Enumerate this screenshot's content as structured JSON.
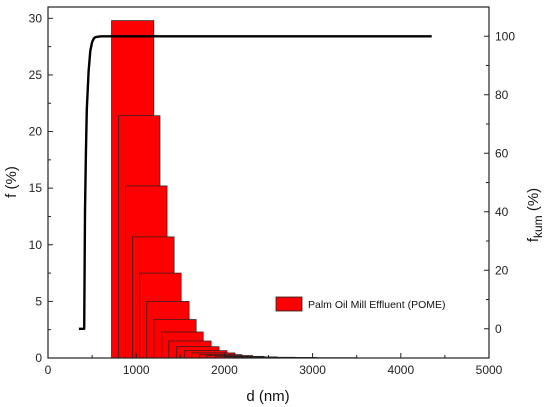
{
  "chart_data": {
    "type": "bar",
    "legend_position": "center-right",
    "grid": false,
    "colors": {
      "bars": "#ff0000",
      "bar_edge": "#222222",
      "cumulative_line": "#000000"
    },
    "xlabel": "d (nm)",
    "ylabel": "f (%)",
    "y2label": "f",
    "y2label_sub": "kum",
    "y2label_suffix": " (%)",
    "xlim": [
      0,
      5000
    ],
    "ylim": [
      0,
      31
    ],
    "y2lim": [
      -10,
      110
    ],
    "x_ticks": [
      "0",
      "1000",
      "2000",
      "3000",
      "4000",
      "5000"
    ],
    "y_ticks": [
      "0",
      "5",
      "10",
      "15",
      "20",
      "25",
      "30"
    ],
    "y2_ticks": [
      "0",
      "20",
      "40",
      "60",
      "80",
      "100"
    ],
    "series": [
      {
        "name": "Palm Oil Mill Effluent (POME)",
        "type": "bar",
        "bars": [
          {
            "x0": 720,
            "x1": 1200,
            "value": 29.8
          },
          {
            "x0": 800,
            "x1": 1270,
            "value": 21.4
          },
          {
            "x0": 880,
            "x1": 1350,
            "value": 15.2
          },
          {
            "x0": 960,
            "x1": 1430,
            "value": 10.7
          },
          {
            "x0": 1040,
            "x1": 1510,
            "value": 7.5
          },
          {
            "x0": 1120,
            "x1": 1600,
            "value": 5.0
          },
          {
            "x0": 1200,
            "x1": 1680,
            "value": 3.4
          },
          {
            "x0": 1290,
            "x1": 1760,
            "value": 2.3
          },
          {
            "x0": 1370,
            "x1": 1850,
            "value": 1.5
          },
          {
            "x0": 1460,
            "x1": 1940,
            "value": 1.0
          },
          {
            "x0": 1550,
            "x1": 2030,
            "value": 0.65
          },
          {
            "x0": 1630,
            "x1": 2120,
            "value": 0.45
          },
          {
            "x0": 1720,
            "x1": 2200,
            "value": 0.3
          },
          {
            "x0": 1800,
            "x1": 2320,
            "value": 0.22
          },
          {
            "x0": 1900,
            "x1": 2450,
            "value": 0.15
          },
          {
            "x0": 2000,
            "x1": 2600,
            "value": 0.1
          },
          {
            "x0": 2100,
            "x1": 2800,
            "value": 0.07
          },
          {
            "x0": 2250,
            "x1": 3050,
            "value": 0.05
          },
          {
            "x0": 2400,
            "x1": 3500,
            "value": 0.03
          }
        ]
      },
      {
        "type": "line",
        "axis": "y2",
        "x": [
          350,
          410,
          415,
          420,
          430,
          440,
          460,
          480,
          500,
          520,
          540,
          600,
          700,
          1000,
          2000,
          3000,
          4000,
          4350
        ],
        "values": [
          0,
          0,
          20,
          40,
          60,
          75,
          88,
          95,
          98,
          99.3,
          99.7,
          100,
          100,
          100,
          100,
          100,
          100,
          100
        ]
      }
    ]
  }
}
